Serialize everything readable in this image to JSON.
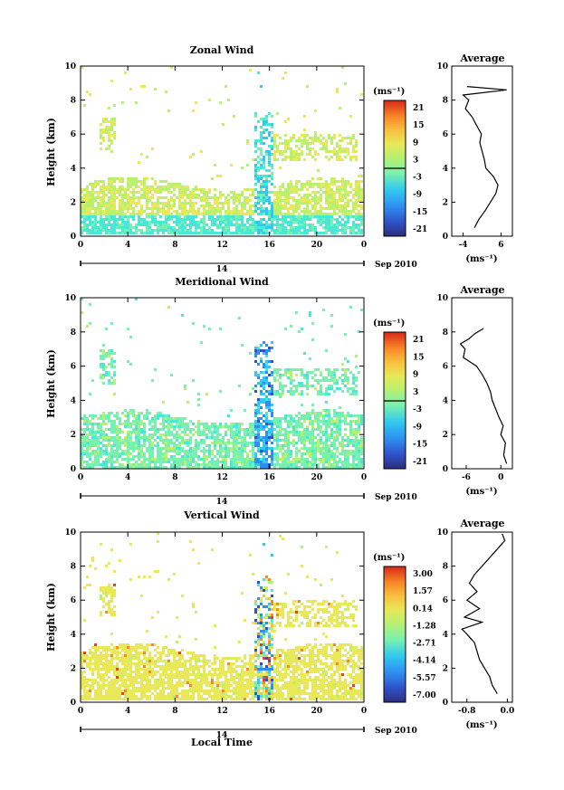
{
  "colors": {
    "colormap": [
      "#2b2f7a",
      "#3050c8",
      "#2f8ff0",
      "#32c8f0",
      "#48e8d8",
      "#78f0b0",
      "#b8f070",
      "#e8e858",
      "#f8c040",
      "#f88828",
      "#e84020",
      "#b81818"
    ]
  },
  "chart_data": [
    {
      "type": "heatmap",
      "title": "Zonal Wind",
      "ylabel": "Height (km)",
      "xlabel": "",
      "ylim": [
        0,
        10
      ],
      "xticks": [
        "0",
        "4",
        "8",
        "12",
        "16",
        "20",
        "0"
      ],
      "yticks": [
        "0",
        "2",
        "4",
        "6",
        "8",
        "10"
      ],
      "date_label": "14",
      "date_suffix": "Sep 2010",
      "colorbar": {
        "unit": "(ms⁻¹)",
        "ticks": [
          "21",
          "15",
          "9",
          "3",
          "-3",
          "-9",
          "-15",
          "-21"
        ],
        "range": [
          -21,
          21
        ]
      },
      "profile": {
        "title": "Average",
        "xlabel": "(ms⁻¹)",
        "xticks": [
          "-4",
          "6"
        ],
        "xlim": [
          -7,
          9
        ],
        "height": [
          0.5,
          1.0,
          1.5,
          2.0,
          2.5,
          3.0,
          3.5,
          4.0,
          4.5,
          5.0,
          5.5,
          6.0,
          6.5,
          7.0,
          7.5,
          8.0,
          8.3,
          8.6,
          8.8
        ],
        "values": [
          -1.0,
          0.2,
          1.8,
          3.2,
          4.6,
          5.2,
          4.0,
          2.0,
          1.6,
          1.0,
          0.4,
          0.8,
          -0.4,
          -1.6,
          -3.4,
          -2.5,
          -4.0,
          7.5,
          -3.0
        ]
      }
    },
    {
      "type": "heatmap",
      "title": "Meridional Wind",
      "ylabel": "Height (km)",
      "xlabel": "",
      "ylim": [
        0,
        10
      ],
      "xticks": [
        "0",
        "4",
        "8",
        "12",
        "16",
        "20",
        "0"
      ],
      "yticks": [
        "0",
        "2",
        "4",
        "6",
        "8",
        "10"
      ],
      "date_label": "14",
      "date_suffix": "Sep 2010",
      "colorbar": {
        "unit": "(ms⁻¹)",
        "ticks": [
          "21",
          "15",
          "9",
          "3",
          "-3",
          "-9",
          "-15",
          "-21"
        ],
        "range": [
          -21,
          21
        ]
      },
      "profile": {
        "title": "Average",
        "xlabel": "(ms⁻¹)",
        "xticks": [
          "-6",
          "0"
        ],
        "xlim": [
          -8.5,
          2
        ],
        "height": [
          0.3,
          0.8,
          1.5,
          2.0,
          2.5,
          3.0,
          3.5,
          4.0,
          4.5,
          5.0,
          5.5,
          6.0,
          6.5,
          7.0,
          7.3,
          7.6,
          7.9,
          8.2
        ],
        "values": [
          1.0,
          0.5,
          0.8,
          0.0,
          0.4,
          -0.3,
          -0.9,
          -1.5,
          -1.8,
          -2.4,
          -3.2,
          -4.2,
          -6.5,
          -6.2,
          -7.0,
          -5.5,
          -4.5,
          -3.0
        ]
      }
    },
    {
      "type": "heatmap",
      "title": "Vertical Wind",
      "ylabel": "Height (km)",
      "xlabel": "Local Time",
      "ylim": [
        0,
        10
      ],
      "xticks": [
        "0",
        "4",
        "8",
        "12",
        "16",
        "20",
        "0"
      ],
      "yticks": [
        "0",
        "2",
        "4",
        "6",
        "8",
        "10"
      ],
      "date_label": "14",
      "date_suffix": "Sep 2010",
      "colorbar": {
        "unit": "(ms⁻¹)",
        "ticks": [
          "3.00",
          "1.57",
          "0.14",
          "-1.28",
          "-2.71",
          "-4.14",
          "-5.57",
          "-7.00"
        ],
        "range": [
          -7.0,
          3.0
        ]
      },
      "profile": {
        "title": "Average",
        "xlabel": "(ms⁻¹)",
        "xticks": [
          "-0.8",
          "0.0"
        ],
        "xlim": [
          -1.1,
          0.1
        ],
        "height": [
          0.5,
          1.0,
          1.5,
          2.0,
          2.5,
          3.0,
          3.5,
          4.0,
          4.3,
          4.7,
          5.0,
          5.5,
          6.0,
          6.5,
          7.0,
          7.5,
          8.0,
          8.5,
          9.0,
          9.5,
          9.9
        ],
        "values": [
          -0.2,
          -0.3,
          -0.35,
          -0.45,
          -0.55,
          -0.6,
          -0.65,
          -0.8,
          -0.9,
          -0.5,
          -0.85,
          -0.55,
          -0.8,
          -0.6,
          -0.75,
          -0.65,
          -0.5,
          -0.35,
          -0.2,
          -0.05,
          -0.1
        ]
      }
    }
  ]
}
